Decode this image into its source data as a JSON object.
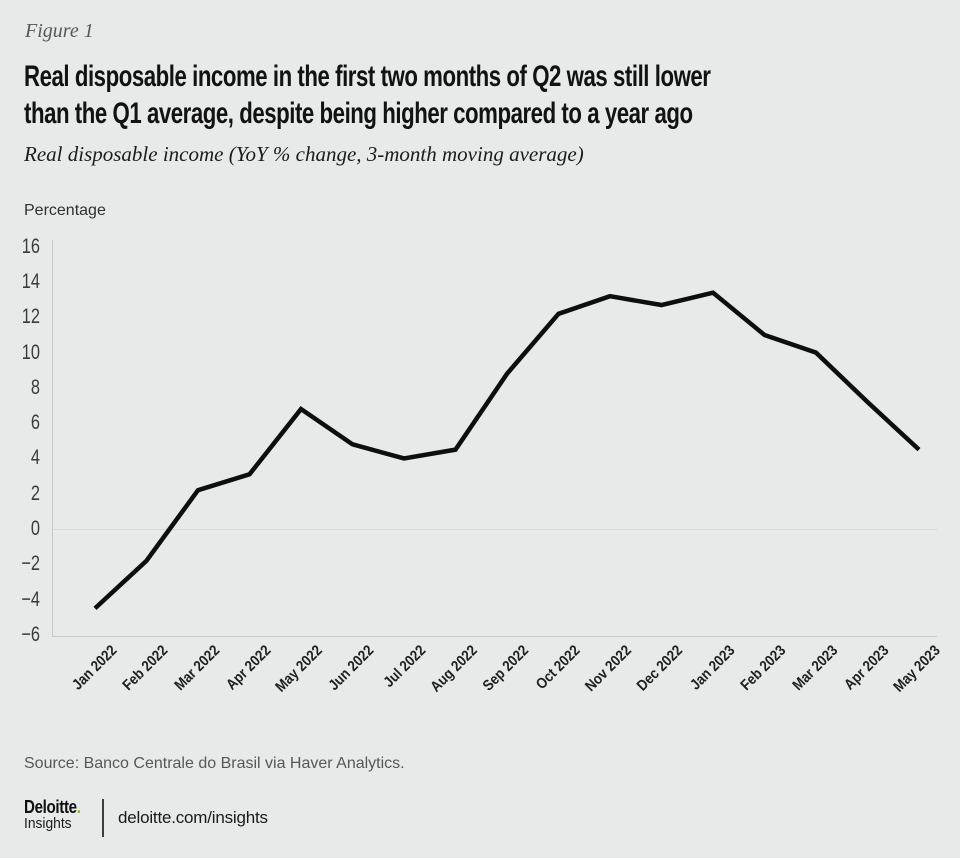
{
  "figure": {
    "label": "Figure 1",
    "title_line1": "Real disposable income in the first two months of Q2 was still lower",
    "title_line2": "than the Q1 average, despite being higher compared to a year ago",
    "subtitle": "Real disposable income (YoY % change, 3-month moving average)"
  },
  "chart_data": {
    "type": "line",
    "title": "Real disposable income in the first two months of Q2 was still lower than the Q1 average, despite being higher compared to a year ago",
    "subtitle": "Real disposable income (YoY % change, 3-month moving average)",
    "xlabel": "",
    "ylabel": "Percentage",
    "ylim": [
      -6,
      16
    ],
    "ytick_step": 2,
    "yticks": [
      16,
      14,
      12,
      10,
      8,
      6,
      4,
      2,
      0,
      -2,
      -4,
      -6
    ],
    "ytick_labels": [
      "16",
      "14",
      "12",
      "10",
      "8",
      "6",
      "4",
      "2",
      "0",
      "−2",
      "−4",
      "−6"
    ],
    "categories": [
      "Jan 2022",
      "Feb 2022",
      "Mar 2022",
      "Apr 2022",
      "May 2022",
      "Jun 2022",
      "Jul 2022",
      "Aug 2022",
      "Sep 2022",
      "Oct 2022",
      "Nov 2022",
      "Dec 2022",
      "Jan 2023",
      "Feb 2023",
      "Mar 2023",
      "Apr 2023",
      "May 2023"
    ],
    "series": [
      {
        "name": "Real disposable income (YoY % change, 3-month moving average)",
        "values": [
          -4.5,
          -1.8,
          2.2,
          3.1,
          6.8,
          4.8,
          4.0,
          4.5,
          8.8,
          12.2,
          13.2,
          12.7,
          13.4,
          11.0,
          10.0,
          7.2,
          4.5
        ]
      }
    ],
    "legend": "none",
    "grid": "zero-baseline-only",
    "line_color": "#0e0e0e",
    "background": "#e8e9e9"
  },
  "footer": {
    "source": "Source: Banco Centrale do Brasil via Haver Analytics.",
    "brand_name": "Deloitte",
    "brand_dot": ".",
    "brand_dot_color": "#86bc25",
    "brand_sub": "Insights",
    "url": "deloitte.com/insights"
  }
}
